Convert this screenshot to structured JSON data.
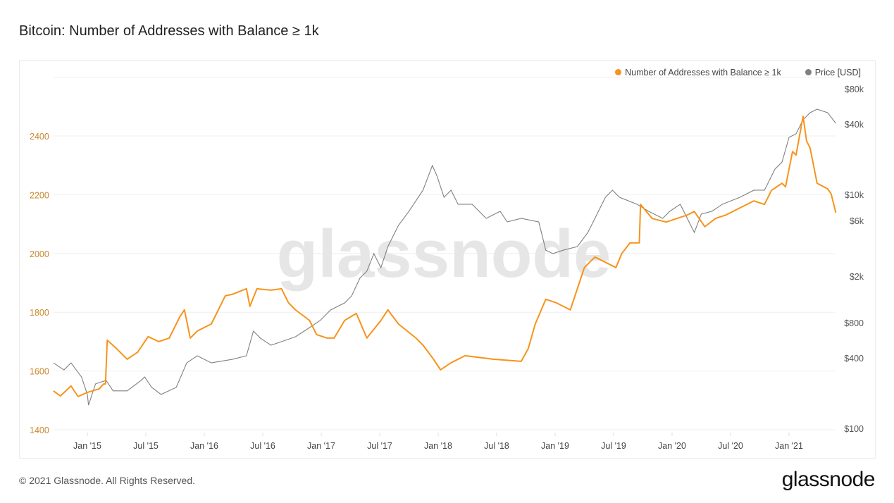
{
  "title": "Bitcoin: Number of Addresses with Balance ≥ 1k",
  "footer": "© 2021 Glassnode. All Rights Reserved.",
  "logo": "glassnode",
  "watermark": "glassnode",
  "colors": {
    "addresses": "#f7931a",
    "price": "#808080",
    "left_axis": "#c98a2e",
    "right_axis": "#555555"
  },
  "chart_data": {
    "type": "line",
    "title": "Bitcoin: Number of Addresses with Balance ≥ 1k",
    "legend_position": "top-right",
    "grid": true,
    "x_ticks": [
      {
        "label": "Jan '15",
        "year": 2015.0
      },
      {
        "label": "Jul '15",
        "year": 2015.5
      },
      {
        "label": "Jan '16",
        "year": 2016.0
      },
      {
        "label": "Jul '16",
        "year": 2016.5
      },
      {
        "label": "Jan '17",
        "year": 2017.0
      },
      {
        "label": "Jul '17",
        "year": 2017.5
      },
      {
        "label": "Jan '18",
        "year": 2018.0
      },
      {
        "label": "Jul '18",
        "year": 2018.5
      },
      {
        "label": "Jan '19",
        "year": 2019.0
      },
      {
        "label": "Jul '19",
        "year": 2019.5
      },
      {
        "label": "Jan '20",
        "year": 2020.0
      },
      {
        "label": "Jul '20",
        "year": 2020.5
      },
      {
        "label": "Jan '21",
        "year": 2021.0
      }
    ],
    "xlim": [
      2014.71,
      2021.4
    ],
    "y_left": {
      "ticks": [
        {
          "label": "1400",
          "value": 1400
        },
        {
          "label": "1600",
          "value": 1600
        },
        {
          "label": "1800",
          "value": 1800
        },
        {
          "label": "2000",
          "value": 2000
        },
        {
          "label": "2200",
          "value": 2200
        },
        {
          "label": "2400",
          "value": 2400
        }
      ],
      "ylim": [
        1400,
        2600
      ]
    },
    "y_right": {
      "scale": "log",
      "ticks": [
        {
          "label": "$100",
          "value": 100
        },
        {
          "label": "$400",
          "value": 400
        },
        {
          "label": "$800",
          "value": 800
        },
        {
          "label": "$2k",
          "value": 2000
        },
        {
          "label": "$6k",
          "value": 6000
        },
        {
          "label": "$10k",
          "value": 10000
        },
        {
          "label": "$40k",
          "value": 40000
        },
        {
          "label": "$80k",
          "value": 80000
        }
      ]
    },
    "series": [
      {
        "name": "Number of Addresses with Balance ≥ 1k",
        "axis": "left",
        "x": [
          2014.71,
          2014.77,
          2014.86,
          2014.92,
          2015.0,
          2015.1,
          2015.14,
          2015.155,
          2015.17,
          2015.25,
          2015.34,
          2015.43,
          2015.52,
          2015.61,
          2015.7,
          2015.79,
          2015.83,
          2015.88,
          2015.94,
          2016.06,
          2016.18,
          2016.24,
          2016.36,
          2016.39,
          2016.45,
          2016.57,
          2016.66,
          2016.72,
          2016.78,
          2016.9,
          2016.96,
          2017.05,
          2017.11,
          2017.2,
          2017.3,
          2017.39,
          2017.51,
          2017.57,
          2017.66,
          2017.81,
          2017.87,
          2017.96,
          2018.02,
          2018.11,
          2018.23,
          2018.47,
          2018.71,
          2018.77,
          2018.83,
          2018.92,
          2019.01,
          2019.13,
          2019.19,
          2019.25,
          2019.34,
          2019.46,
          2019.52,
          2019.57,
          2019.64,
          2019.72,
          2019.73,
          2019.83,
          2019.95,
          2020.04,
          2020.13,
          2020.19,
          2020.28,
          2020.37,
          2020.46,
          2020.58,
          2020.7,
          2020.79,
          2020.85,
          2020.94,
          2020.97,
          2021.03,
          2021.06,
          2021.12,
          2021.15,
          2021.18,
          2021.24,
          2021.33,
          2021.36,
          2021.4
        ],
        "y": [
          1532,
          1515,
          1549,
          1513,
          1527,
          1539,
          1556,
          1556,
          1705,
          1676,
          1640,
          1664,
          1717,
          1700,
          1712,
          1784,
          1808,
          1712,
          1736,
          1760,
          1856,
          1861,
          1880,
          1820,
          1880,
          1875,
          1880,
          1832,
          1808,
          1772,
          1724,
          1712,
          1712,
          1772,
          1796,
          1712,
          1772,
          1808,
          1760,
          1712,
          1688,
          1640,
          1604,
          1628,
          1652,
          1640,
          1633,
          1676,
          1760,
          1844,
          1832,
          1808,
          1880,
          1952,
          1988,
          1964,
          1952,
          2000,
          2036,
          2036,
          2167,
          2119,
          2107,
          2119,
          2131,
          2143,
          2091,
          2119,
          2131,
          2155,
          2179,
          2167,
          2215,
          2239,
          2227,
          2347,
          2335,
          2467,
          2383,
          2359,
          2239,
          2220,
          2203,
          2139
        ]
      },
      {
        "name": "Price [USD]",
        "axis": "right",
        "x": [
          2014.71,
          2014.8,
          2014.86,
          2014.95,
          2015.0,
          2015.01,
          2015.07,
          2015.16,
          2015.22,
          2015.34,
          2015.46,
          2015.49,
          2015.55,
          2015.63,
          2015.76,
          2015.85,
          2015.94,
          2016.06,
          2016.24,
          2016.36,
          2016.42,
          2016.48,
          2016.57,
          2016.66,
          2016.78,
          2016.9,
          2016.99,
          2017.08,
          2017.2,
          2017.26,
          2017.33,
          2017.39,
          2017.45,
          2017.51,
          2017.57,
          2017.66,
          2017.75,
          2017.87,
          2017.95,
          2017.99,
          2018.05,
          2018.11,
          2018.17,
          2018.29,
          2018.41,
          2018.53,
          2018.59,
          2018.71,
          2018.86,
          2018.92,
          2018.98,
          2019.07,
          2019.19,
          2019.28,
          2019.37,
          2019.43,
          2019.49,
          2019.55,
          2019.7,
          2019.8,
          2019.92,
          2019.98,
          2020.07,
          2020.19,
          2020.25,
          2020.34,
          2020.43,
          2020.58,
          2020.7,
          2020.79,
          2020.88,
          2020.94,
          2021.0,
          2021.06,
          2021.12,
          2021.18,
          2021.24,
          2021.33,
          2021.4
        ],
        "y": [
          363,
          316,
          363,
          275,
          195,
          158,
          240,
          257,
          209,
          209,
          257,
          275,
          224,
          195,
          224,
          363,
          417,
          363,
          389,
          417,
          678,
          590,
          514,
          551,
          607,
          727,
          835,
          1028,
          1181,
          1357,
          1920,
          2205,
          3119,
          2363,
          3583,
          5430,
          7170,
          10870,
          17660,
          14350,
          9460,
          10870,
          8240,
          8240,
          6240,
          7170,
          5820,
          6240,
          5820,
          3340,
          3120,
          3340,
          3583,
          4730,
          7170,
          9460,
          10870,
          9460,
          8240,
          7170,
          6240,
          7170,
          8240,
          4730,
          6800,
          7170,
          8240,
          9460,
          10870,
          10870,
          16480,
          18920,
          30760,
          32970,
          43500,
          50000,
          53580,
          50000,
          40600
        ]
      }
    ]
  }
}
